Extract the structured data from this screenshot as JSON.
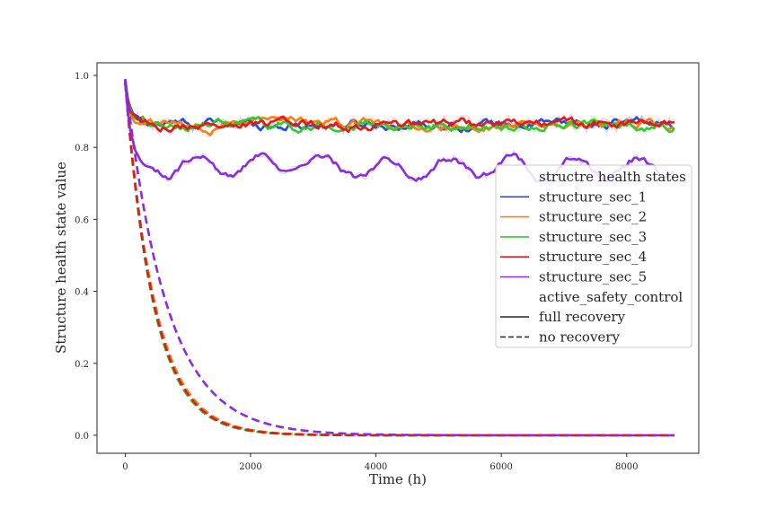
{
  "chart_data": {
    "type": "line",
    "xlabel": "Time (h)",
    "ylabel": "Structure health state value",
    "xlim": [
      -450,
      9150
    ],
    "ylim": [
      -0.05,
      1.035
    ],
    "xticks": [
      0,
      2000,
      4000,
      6000,
      8000
    ],
    "yticks": [
      0.0,
      0.2,
      0.4,
      0.6,
      0.8,
      1.0
    ],
    "x_max": 8760,
    "grid": false,
    "legend_position": "center-right",
    "legend": {
      "hue_title": "structre health states",
      "style_title": "active_safety_control",
      "style_entries": [
        {
          "label": "full recovery",
          "dash": "solid"
        },
        {
          "label": "no recovery",
          "dash": "dashed"
        }
      ]
    },
    "series": [
      {
        "name": "structure_sec_1",
        "color": "#1f4fd6",
        "full_recovery": {
          "start": 0.98,
          "plateau": 0.865,
          "tau": 80,
          "noise": 0.012
        },
        "no_recovery": {
          "start": 0.98,
          "tau": 470
        }
      },
      {
        "name": "structure_sec_2",
        "color": "#ff7f0e",
        "full_recovery": {
          "start": 0.98,
          "plateau": 0.862,
          "tau": 80,
          "noise": 0.012
        },
        "no_recovery": {
          "start": 0.98,
          "tau": 480
        }
      },
      {
        "name": "structure_sec_3",
        "color": "#2ecc2e",
        "full_recovery": {
          "start": 0.98,
          "plateau": 0.862,
          "tau": 80,
          "noise": 0.012
        },
        "no_recovery": {
          "start": 0.98,
          "tau": 455
        }
      },
      {
        "name": "structure_sec_4",
        "color": "#e31a1c",
        "full_recovery": {
          "start": 0.98,
          "plateau": 0.863,
          "tau": 80,
          "noise": 0.012
        },
        "no_recovery": {
          "start": 0.98,
          "tau": 465
        }
      },
      {
        "name": "structure_sec_5",
        "color": "#8a2be2",
        "full_recovery": {
          "start": 0.99,
          "plateau": 0.745,
          "tau": 90,
          "wave_amp": 0.027,
          "wave_period": 1000,
          "noise": 0.01
        },
        "no_recovery": {
          "start": 0.99,
          "tau": 660
        }
      }
    ]
  }
}
